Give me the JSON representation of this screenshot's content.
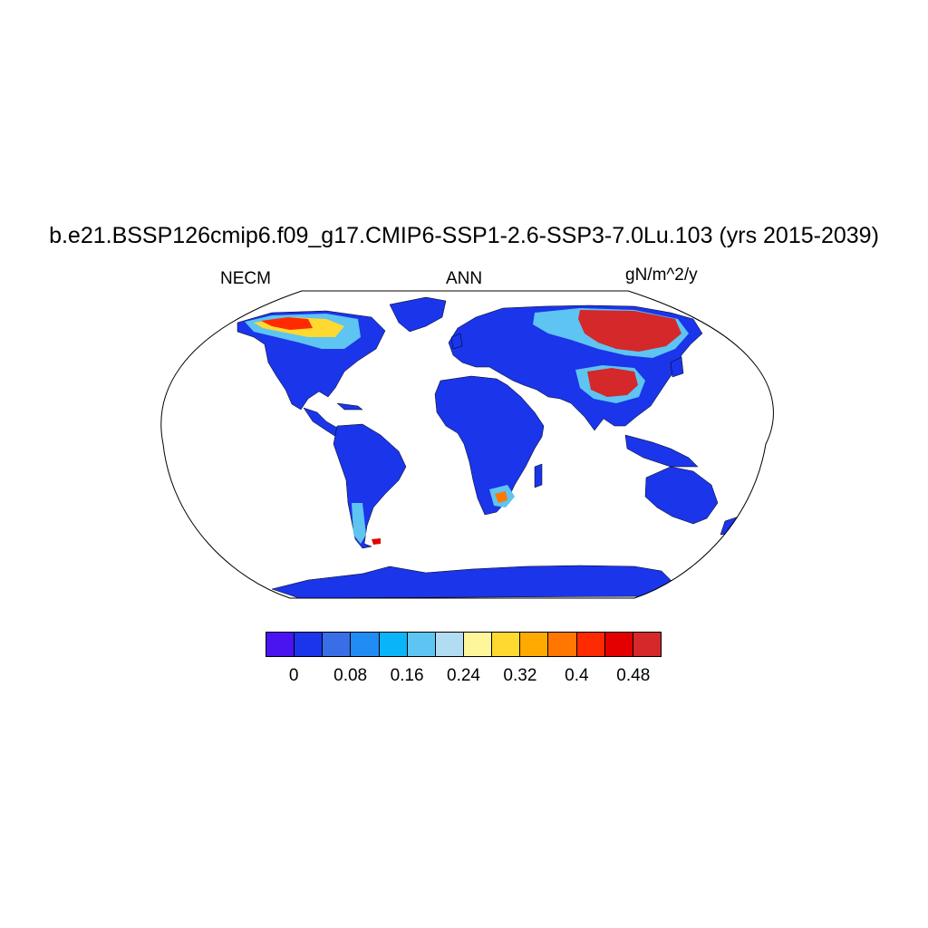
{
  "title": "b.e21.BSSP126cmip6.f09_g17.CMIP6-SSP1-2.6-SSP3-7.0Lu.103 (yrs 2015-2039)",
  "left_label": "NECM",
  "center_label": "ANN",
  "right_label": "gN/m^2/y",
  "colorbar": {
    "colors": [
      "#4a14f0",
      "#1a35ea",
      "#3a6ee6",
      "#208cf4",
      "#0ab4f8",
      "#5ec4f2",
      "#b2dcf2",
      "#fff69c",
      "#ffd930",
      "#ffaa00",
      "#ff7700",
      "#ff2a00",
      "#e20000",
      "#d4282a"
    ],
    "labels": [
      "0",
      "0.08",
      "0.16",
      "0.24",
      "0.32",
      "0.4",
      "0.48"
    ]
  },
  "map": {
    "projection": "Robinson",
    "land_color": "#1a35ea",
    "ocean_color": "#ffffff",
    "hotspots": [
      "Alaska / northern Canada",
      "Siberia",
      "Tibetan Plateau",
      "southern Africa",
      "Patagonia"
    ]
  }
}
